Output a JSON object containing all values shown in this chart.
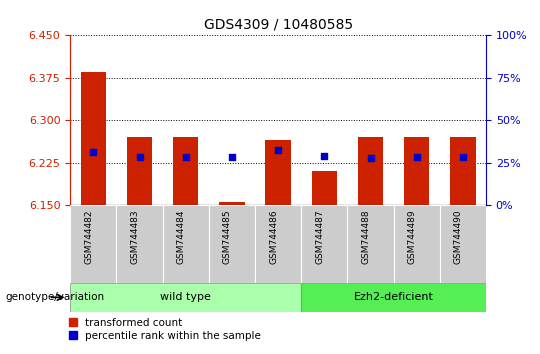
{
  "title": "GDS4309 / 10480585",
  "samples": [
    "GSM744482",
    "GSM744483",
    "GSM744484",
    "GSM744485",
    "GSM744486",
    "GSM744487",
    "GSM744488",
    "GSM744489",
    "GSM744490"
  ],
  "bar_tops": [
    6.385,
    6.27,
    6.27,
    6.156,
    6.265,
    6.21,
    6.27,
    6.27,
    6.27
  ],
  "bar_bottom": 6.15,
  "blue_dots": [
    6.245,
    6.235,
    6.235,
    6.235,
    6.247,
    6.237,
    6.233,
    6.235,
    6.235
  ],
  "ylim_left": [
    6.15,
    6.45
  ],
  "yticks_left": [
    6.15,
    6.225,
    6.3,
    6.375,
    6.45
  ],
  "ylim_right": [
    0,
    100
  ],
  "yticks_right": [
    0,
    25,
    50,
    75,
    100
  ],
  "bar_color": "#cc2200",
  "dot_color": "#0000cc",
  "wild_type_samples": [
    "GSM744482",
    "GSM744483",
    "GSM744484",
    "GSM744485",
    "GSM744486"
  ],
  "ezh2_samples": [
    "GSM744487",
    "GSM744488",
    "GSM744489",
    "GSM744490"
  ],
  "wild_type_label": "wild type",
  "ezh2_label": "Ezh2-deficient",
  "genotype_label": "genotype/variation",
  "legend_bar_label": "transformed count",
  "legend_dot_label": "percentile rank within the sample",
  "wild_type_color": "#aaffaa",
  "ezh2_color": "#55ee55",
  "bar_width": 0.55,
  "sample_bg_color": "#cccccc",
  "left_axis_color": "#cc2200",
  "right_axis_color": "#0000cc"
}
